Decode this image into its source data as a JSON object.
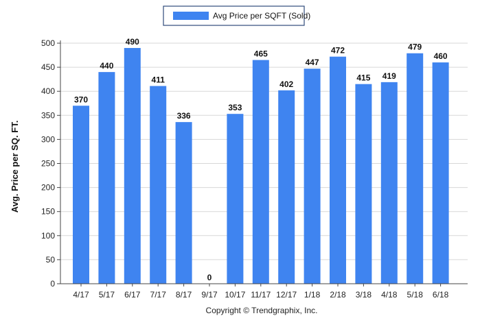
{
  "chart_data": {
    "type": "bar",
    "categories": [
      "4/17",
      "5/17",
      "6/17",
      "7/17",
      "8/17",
      "9/17",
      "10/17",
      "11/17",
      "12/17",
      "1/18",
      "2/18",
      "3/18",
      "4/18",
      "5/18",
      "6/18"
    ],
    "series": [
      {
        "name": "Avg Price per SQFT (Sold)",
        "values": [
          370,
          440,
          490,
          411,
          336,
          0,
          353,
          465,
          402,
          447,
          472,
          415,
          419,
          479,
          460
        ]
      }
    ],
    "ylabel": "Avg. Price per SQ. FT.",
    "xlabel": "",
    "ylim": [
      0,
      500
    ],
    "yticks": [
      0,
      50,
      100,
      150,
      200,
      250,
      300,
      350,
      400,
      450,
      500
    ],
    "grid": true,
    "legend": "top-center",
    "bar_color": "#3f84f0",
    "grid_color": "#d7d7d7"
  },
  "footer": "Copyright © Trendgraphix, Inc."
}
